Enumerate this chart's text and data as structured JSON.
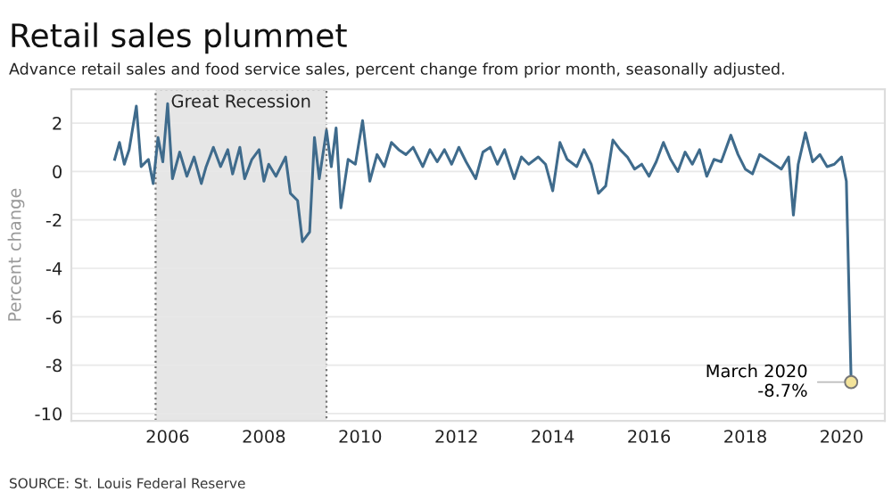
{
  "chart_data": {
    "type": "line",
    "title": "Retail sales plummet",
    "subtitle": "Advance retail sales and food service sales, percent change from prior month, seasonally adjusted.",
    "ylabel": "Percent change",
    "x": [
      2004.9,
      2005.0,
      2005.1,
      2005.2,
      2005.35,
      2005.45,
      2005.6,
      2005.7,
      2005.8,
      2005.9,
      2006.0,
      2006.1,
      2006.25,
      2006.4,
      2006.55,
      2006.7,
      2006.8,
      2006.95,
      2007.1,
      2007.25,
      2007.35,
      2007.5,
      2007.6,
      2007.75,
      2007.9,
      2008.0,
      2008.1,
      2008.25,
      2008.45,
      2008.55,
      2008.7,
      2008.8,
      2008.95,
      2009.05,
      2009.15,
      2009.3,
      2009.4,
      2009.5,
      2009.6,
      2009.75,
      2009.9,
      2010.05,
      2010.2,
      2010.35,
      2010.5,
      2010.65,
      2010.8,
      2010.95,
      2011.1,
      2011.3,
      2011.45,
      2011.6,
      2011.75,
      2011.9,
      2012.05,
      2012.2,
      2012.4,
      2012.55,
      2012.7,
      2012.85,
      2013.0,
      2013.2,
      2013.35,
      2013.5,
      2013.7,
      2013.85,
      2014.0,
      2014.15,
      2014.3,
      2014.5,
      2014.65,
      2014.8,
      2014.95,
      2015.1,
      2015.25,
      2015.4,
      2015.55,
      2015.7,
      2015.85,
      2016.0,
      2016.15,
      2016.3,
      2016.45,
      2016.6,
      2016.75,
      2016.9,
      2017.05,
      2017.2,
      2017.35,
      2017.5,
      2017.7,
      2017.85,
      2018.0,
      2018.15,
      2018.3,
      2018.45,
      2018.6,
      2018.75,
      2018.9,
      2019.0,
      2019.1,
      2019.25,
      2019.4,
      2019.55,
      2019.7,
      2019.85,
      2020.0,
      2020.1,
      2020.2
    ],
    "series": [
      {
        "color": "#3f6b8c",
        "values": [
          0.5,
          1.2,
          0.3,
          0.9,
          2.7,
          0.2,
          0.5,
          -0.5,
          1.4,
          0.4,
          2.8,
          -0.3,
          0.8,
          -0.2,
          0.6,
          -0.5,
          0.2,
          1.0,
          0.2,
          0.9,
          -0.1,
          1.0,
          -0.3,
          0.5,
          0.9,
          -0.4,
          0.3,
          -0.2,
          0.6,
          -0.9,
          -1.2,
          -2.9,
          -2.5,
          1.4,
          -0.3,
          1.7,
          0.2,
          1.8,
          -1.5,
          0.5,
          0.3,
          2.1,
          -0.4,
          0.7,
          0.2,
          1.2,
          0.9,
          0.7,
          1.0,
          0.2,
          0.9,
          0.4,
          0.9,
          0.3,
          1.0,
          0.4,
          -0.3,
          0.8,
          1.0,
          0.3,
          0.9,
          -0.3,
          0.6,
          0.3,
          0.6,
          0.3,
          -0.8,
          1.2,
          0.5,
          0.2,
          0.9,
          0.3,
          -0.9,
          -0.6,
          1.3,
          0.9,
          0.6,
          0.1,
          0.3,
          -0.2,
          0.4,
          1.2,
          0.5,
          0.0,
          0.8,
          0.3,
          0.9,
          -0.2,
          0.5,
          0.4,
          1.5,
          0.7,
          0.1,
          -0.1,
          0.7,
          0.5,
          0.3,
          0.1,
          0.6,
          -1.8,
          0.3,
          1.6,
          0.4,
          0.7,
          0.2,
          0.3,
          0.6,
          -0.4,
          -8.7
        ]
      }
    ],
    "xlim": [
      2004.0,
      2020.9
    ],
    "xticks": [
      2006,
      2008,
      2010,
      2012,
      2014,
      2016,
      2018,
      2020
    ],
    "ylim": [
      -10.3,
      3.4
    ],
    "yticks": [
      {
        "value": 2,
        "label": "2"
      },
      {
        "value": 0,
        "label": "0"
      },
      {
        "value": -2,
        "label": "-2"
      },
      {
        "value": -4,
        "label": "-4"
      },
      {
        "value": -6,
        "label": "-6"
      },
      {
        "value": -8,
        "label": "-8"
      },
      {
        "value": -10,
        "label": "-10"
      }
    ],
    "grid": "y",
    "marker": "none",
    "line_style": "solid",
    "legend": false,
    "bands": [
      {
        "axis": "x",
        "from": 2005.75,
        "to": 2009.3,
        "label": "Great Recession",
        "color": "#e6e6e6"
      }
    ],
    "annotations": [
      {
        "text": "March 2020\n-8.7%",
        "x": 2020.2,
        "y": -8.7
      },
      "SOURCE: St. Louis Federal Reserve"
    ]
  }
}
